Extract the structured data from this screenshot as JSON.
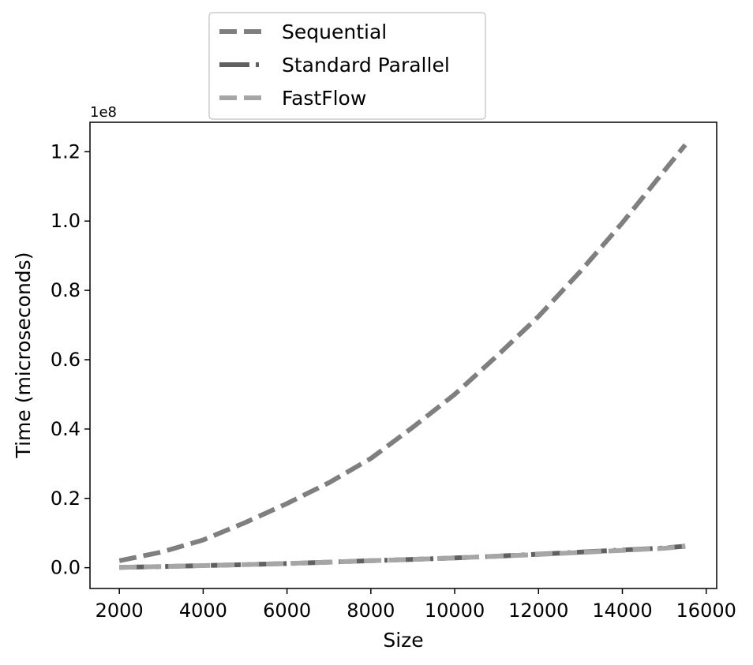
{
  "chart_data": {
    "type": "line",
    "title": "",
    "xlabel": "Size",
    "ylabel": "Time (microseconds)",
    "y_offset_text": "1e8",
    "xlim": [
      1300,
      16250
    ],
    "ylim": [
      -0.06,
      1.285
    ],
    "y_scale_factor": 100000000,
    "xticks": [
      2000,
      4000,
      6000,
      8000,
      10000,
      12000,
      14000,
      16000
    ],
    "xtick_labels": [
      "2000",
      "4000",
      "6000",
      "8000",
      "10000",
      "12000",
      "14000",
      "16000"
    ],
    "yticks": [
      0.0,
      0.2,
      0.4,
      0.6,
      0.8,
      1.0,
      1.2
    ],
    "ytick_labels": [
      "0.0",
      "0.2",
      "0.4",
      "0.6",
      "0.8",
      "1.0",
      "1.2"
    ],
    "grid": false,
    "legend_position": "top-center (above plot)",
    "x": [
      2000,
      3000,
      4000,
      5000,
      6000,
      7000,
      8000,
      9000,
      10000,
      11000,
      12000,
      13000,
      14000,
      15000,
      15500
    ],
    "series": [
      {
        "name": "Sequential",
        "color": "#7f7f7f",
        "dash": "long-dash",
        "values": [
          0.02,
          0.045,
          0.08,
          0.13,
          0.185,
          0.245,
          0.315,
          0.405,
          0.5,
          0.61,
          0.725,
          0.855,
          0.995,
          1.145,
          1.22
        ]
      },
      {
        "name": "Standard Parallel",
        "color": "#606060",
        "dash": "dash-dot",
        "values": [
          0.001,
          0.003,
          0.006,
          0.009,
          0.012,
          0.016,
          0.02,
          0.024,
          0.028,
          0.033,
          0.039,
          0.045,
          0.051,
          0.057,
          0.062
        ]
      },
      {
        "name": "FastFlow",
        "color": "#a6a6a6",
        "dash": "dash",
        "values": [
          0.001,
          0.003,
          0.006,
          0.009,
          0.012,
          0.016,
          0.02,
          0.024,
          0.028,
          0.033,
          0.038,
          0.044,
          0.05,
          0.056,
          0.061
        ]
      }
    ]
  }
}
